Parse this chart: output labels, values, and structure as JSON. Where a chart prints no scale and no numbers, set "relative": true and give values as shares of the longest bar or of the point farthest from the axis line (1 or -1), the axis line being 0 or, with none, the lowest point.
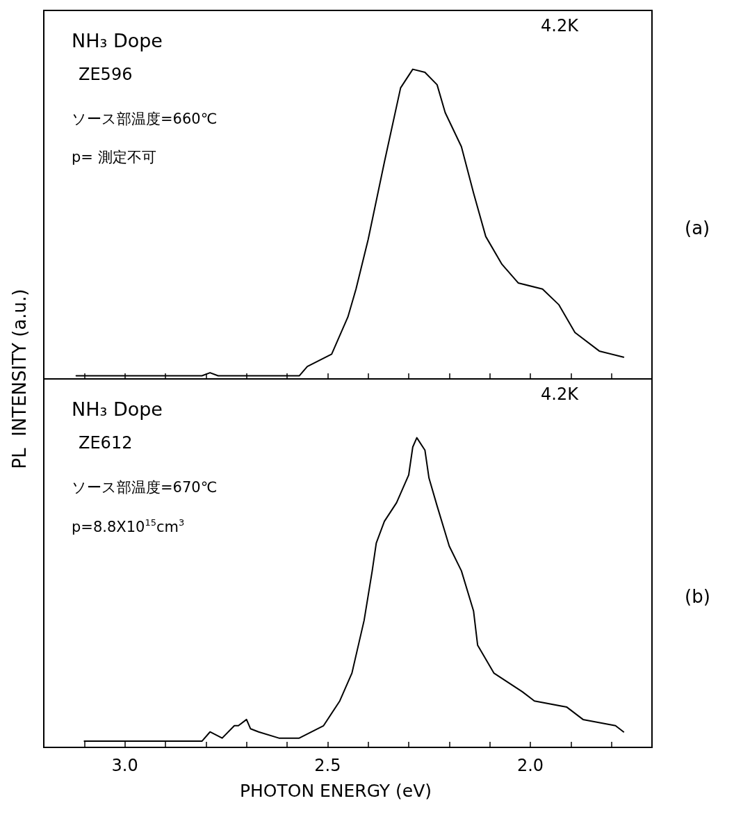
{
  "chart_data": [
    {
      "type": "line",
      "relative": true,
      "ylabel": "PL  INTENSITY (a.u.)",
      "xlim": [
        3.2,
        1.7
      ],
      "tick_labels": false,
      "xticks": [
        {
          "value": 3.1,
          "label": null
        },
        {
          "value": 3.0,
          "label": null
        },
        {
          "value": 2.9,
          "label": null
        },
        {
          "value": 2.8,
          "label": null
        },
        {
          "value": 2.7,
          "label": null
        },
        {
          "value": 2.6,
          "label": null
        },
        {
          "value": 2.5,
          "label": null
        },
        {
          "value": 2.4,
          "label": null
        },
        {
          "value": 2.3,
          "label": null
        },
        {
          "value": 2.2,
          "label": null
        },
        {
          "value": 2.1,
          "label": null
        },
        {
          "value": 2.0,
          "label": null
        },
        {
          "value": 1.9,
          "label": null
        },
        {
          "value": 1.8,
          "label": null
        }
      ],
      "annotations": [
        "NH₃ Dope",
        "ZE596",
        "ソース部温度=660℃",
        "p= 測定不可",
        "4.2K",
        "(a)"
      ],
      "series": [
        {
          "color": "#000000",
          "x": [
            3.12,
            2.81,
            2.79,
            2.77,
            2.57,
            2.55,
            2.49,
            2.45,
            2.43,
            2.4,
            2.36,
            2.32,
            2.29,
            2.26,
            2.23,
            2.21,
            2.17,
            2.14,
            2.11,
            2.07,
            2.03,
            1.97,
            1.93,
            1.89,
            1.83,
            1.77
          ],
          "values": [
            0.01,
            0.01,
            0.02,
            0.01,
            0.01,
            0.04,
            0.08,
            0.2,
            0.29,
            0.45,
            0.7,
            0.94,
            1.0,
            0.99,
            0.95,
            0.86,
            0.75,
            0.6,
            0.46,
            0.37,
            0.31,
            0.29,
            0.24,
            0.15,
            0.09,
            0.07
          ]
        }
      ]
    },
    {
      "type": "line",
      "relative": true,
      "xlabel": "PHOTON ENERGY (eV)",
      "xlim": [
        3.2,
        1.7
      ],
      "tick_labels": "x",
      "xticks": [
        {
          "value": 3.1,
          "label": null
        },
        {
          "value": 3.0,
          "label": "3.0"
        },
        {
          "value": 2.9,
          "label": null
        },
        {
          "value": 2.8,
          "label": null
        },
        {
          "value": 2.7,
          "label": null
        },
        {
          "value": 2.6,
          "label": null
        },
        {
          "value": 2.5,
          "label": "2.5"
        },
        {
          "value": 2.4,
          "label": null
        },
        {
          "value": 2.3,
          "label": null
        },
        {
          "value": 2.2,
          "label": null
        },
        {
          "value": 2.1,
          "label": null
        },
        {
          "value": 2.0,
          "label": "2.0"
        },
        {
          "value": 1.9,
          "label": null
        },
        {
          "value": 1.8,
          "label": null
        }
      ],
      "annotations": [
        "NH₃ Dope",
        "ZE612",
        "ソース部温度=670℃",
        "p=8.8X10$^{15}$cm$^{3}$",
        "4.2K",
        "(b)"
      ],
      "series": [
        {
          "color": "#000000",
          "x": [
            3.1,
            2.81,
            2.79,
            2.76,
            2.73,
            2.72,
            2.7,
            2.69,
            2.67,
            2.62,
            2.57,
            2.51,
            2.47,
            2.44,
            2.41,
            2.39,
            2.38,
            2.36,
            2.33,
            2.3,
            2.29,
            2.28,
            2.26,
            2.25,
            2.23,
            2.2,
            2.17,
            2.14,
            2.13,
            2.09,
            2.02,
            1.99,
            1.91,
            1.87,
            1.79,
            1.77
          ],
          "values": [
            0.02,
            0.02,
            0.05,
            0.03,
            0.07,
            0.07,
            0.09,
            0.06,
            0.05,
            0.03,
            0.03,
            0.07,
            0.15,
            0.24,
            0.41,
            0.57,
            0.66,
            0.73,
            0.79,
            0.88,
            0.97,
            1.0,
            0.96,
            0.87,
            0.78,
            0.65,
            0.57,
            0.44,
            0.33,
            0.24,
            0.18,
            0.15,
            0.13,
            0.09,
            0.07,
            0.05
          ]
        }
      ]
    }
  ]
}
